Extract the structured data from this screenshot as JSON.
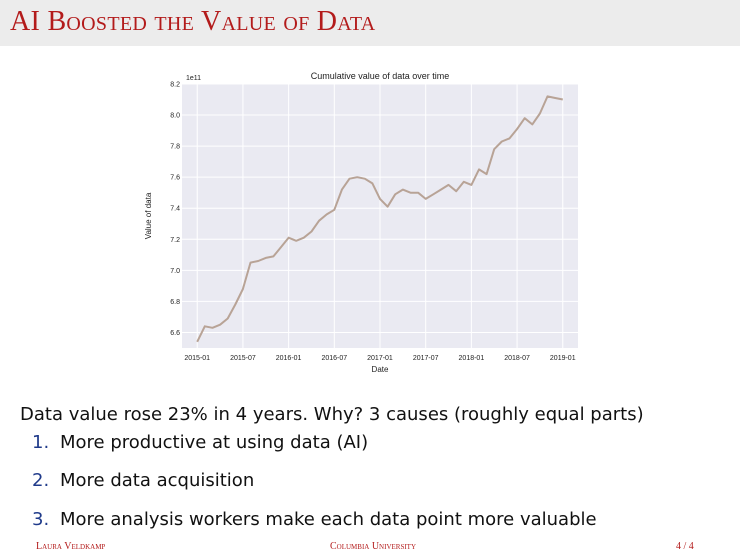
{
  "slide": {
    "title": "AI Boosted the Value of Data",
    "statement": "Data value rose 23% in 4 years. Why? 3 causes (roughly equal parts)",
    "causes": [
      {
        "num": "1.",
        "text": "More productive at using data (AI)"
      },
      {
        "num": "2.",
        "text": "More data acquisition"
      },
      {
        "num": "3.",
        "text": "More analysis workers make each data point more valuable"
      }
    ],
    "footer": {
      "author": "Laura Veldkamp",
      "institution": "Columbia University",
      "page": "4 / 4"
    }
  },
  "colors": {
    "title": "#b31b1b",
    "list_numbers": "#1f3a8a",
    "plot_bg": "#eaeaf2",
    "series_line": "#b8a396"
  },
  "chart_data": {
    "type": "line",
    "title": "Cumulative value of data over time",
    "xlabel": "Date",
    "ylabel": "Value of data",
    "y_offset_label": "1e11",
    "grid": true,
    "ylim": [
      6.5,
      8.2
    ],
    "yticks": [
      6.6,
      6.8,
      7.0,
      7.2,
      7.4,
      7.6,
      7.8,
      8.0,
      8.2
    ],
    "xlim": [
      "2014-11",
      "2019-03"
    ],
    "xticks": [
      "2015-01",
      "2015-07",
      "2016-01",
      "2016-07",
      "2017-01",
      "2017-07",
      "2018-01",
      "2018-07",
      "2019-01"
    ],
    "series": [
      {
        "x": [
          "2015-01",
          "2015-02",
          "2015-03",
          "2015-04",
          "2015-05",
          "2015-06",
          "2015-07",
          "2015-08",
          "2015-09",
          "2015-10",
          "2015-11",
          "2015-12",
          "2016-01",
          "2016-02",
          "2016-03",
          "2016-04",
          "2016-05",
          "2016-06",
          "2016-07",
          "2016-08",
          "2016-09",
          "2016-10",
          "2016-11",
          "2016-12",
          "2017-01",
          "2017-02",
          "2017-03",
          "2017-04",
          "2017-05",
          "2017-06",
          "2017-07",
          "2017-08",
          "2017-09",
          "2017-10",
          "2017-11",
          "2017-12",
          "2018-01",
          "2018-02",
          "2018-03",
          "2018-04",
          "2018-05",
          "2018-06",
          "2018-07",
          "2018-08",
          "2018-09",
          "2018-10",
          "2018-11",
          "2018-12",
          "2019-01"
        ],
        "y": [
          6.54,
          6.64,
          6.63,
          6.65,
          6.69,
          6.78,
          6.88,
          7.05,
          7.06,
          7.08,
          7.09,
          7.15,
          7.21,
          7.19,
          7.21,
          7.25,
          7.32,
          7.36,
          7.39,
          7.52,
          7.59,
          7.6,
          7.59,
          7.56,
          7.46,
          7.41,
          7.49,
          7.52,
          7.5,
          7.5,
          7.46,
          7.49,
          7.52,
          7.55,
          7.51,
          7.57,
          7.55,
          7.65,
          7.62,
          7.78,
          7.83,
          7.85,
          7.91,
          7.98,
          7.94,
          8.01,
          8.12,
          8.11,
          8.1
        ]
      }
    ]
  }
}
